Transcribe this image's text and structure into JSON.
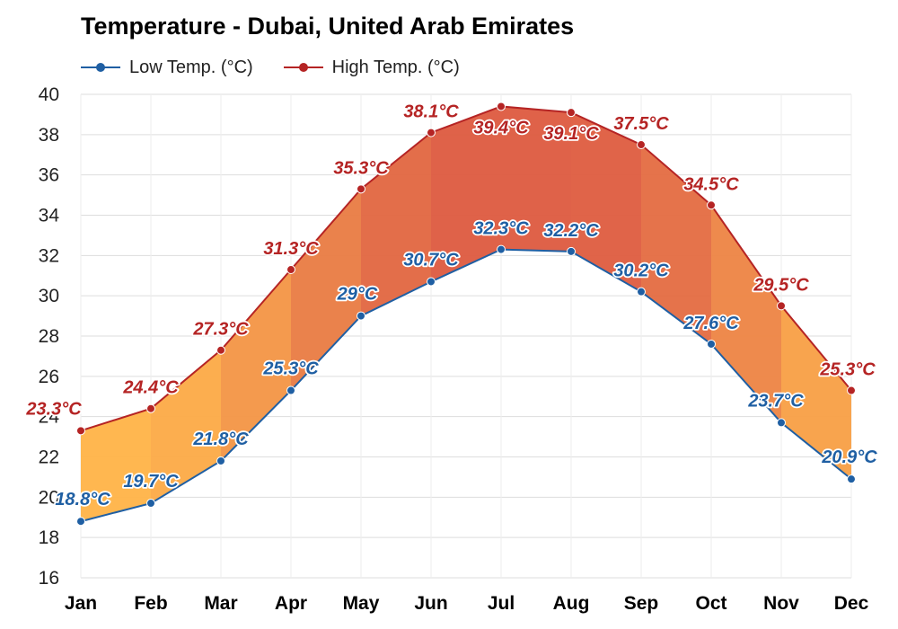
{
  "chart_data": {
    "type": "line",
    "title": "Temperature - Dubai, United Arab Emirates",
    "categories": [
      "Jan",
      "Feb",
      "Mar",
      "Apr",
      "May",
      "Jun",
      "Jul",
      "Aug",
      "Sep",
      "Oct",
      "Nov",
      "Dec"
    ],
    "series": [
      {
        "name": "Low Temp. (°C)",
        "color": "#1f5fa3",
        "values": [
          18.8,
          19.7,
          21.8,
          25.3,
          29,
          30.7,
          32.3,
          32.2,
          30.2,
          27.6,
          23.7,
          20.9
        ],
        "labels": [
          "18.8°C",
          "19.7°C",
          "21.8°C",
          "25.3°C",
          "29°C",
          "30.7°C",
          "32.3°C",
          "32.2°C",
          "30.2°C",
          "27.6°C",
          "23.7°C",
          "20.9°C"
        ]
      },
      {
        "name": "High Temp. (°C)",
        "color": "#b52424",
        "values": [
          23.3,
          24.4,
          27.3,
          31.3,
          35.3,
          38.1,
          39.4,
          39.1,
          37.5,
          34.5,
          29.5,
          25.3
        ],
        "labels": [
          "23.3°C",
          "24.4°C",
          "27.3°C",
          "31.3°C",
          "35.3°C",
          "38.1°C",
          "39.4°C",
          "39.1°C",
          "37.5°C",
          "34.5°C",
          "29.5°C",
          "25.3°C"
        ]
      }
    ],
    "ylim": [
      16,
      40
    ],
    "yticks": [
      "16",
      "18",
      "20",
      "22",
      "24",
      "26",
      "28",
      "30",
      "32",
      "34",
      "36",
      "38",
      "40"
    ],
    "grid": true,
    "legend_position": "top-left",
    "fill_between": true,
    "fill_colors": {
      "cool": "#ffb347",
      "hot": "#dd5a3f"
    }
  }
}
